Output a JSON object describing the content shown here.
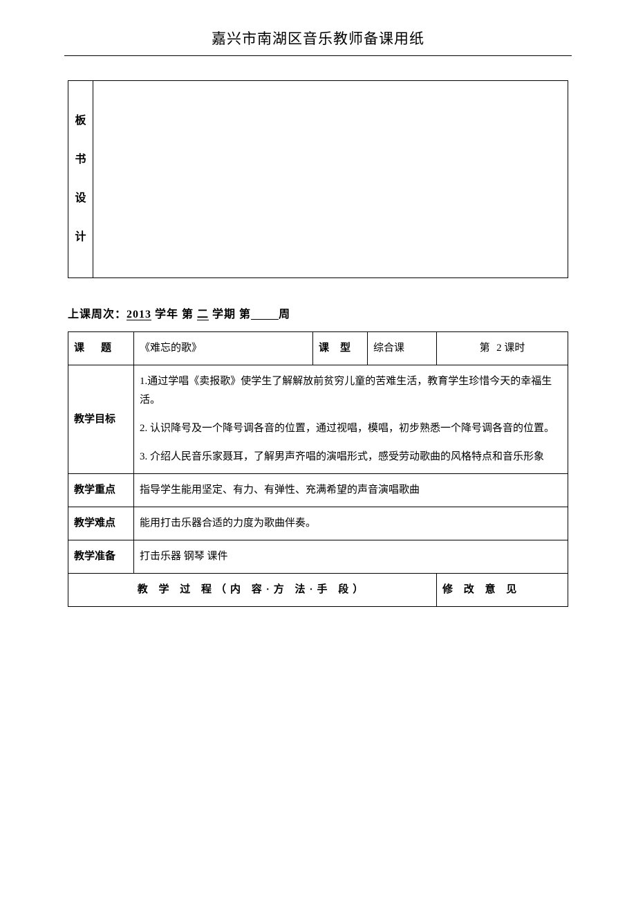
{
  "header": {
    "title": "嘉兴市南湖区音乐教师备课用纸"
  },
  "board_design": {
    "label": "板书设计"
  },
  "week_info": {
    "prefix": "上课周次：",
    "year": "2013",
    "year_suffix": " 学年 第 ",
    "semester": "二",
    "semester_suffix": " 学期 第",
    "week_suffix": "周"
  },
  "lesson": {
    "topic_label": "课题",
    "topic_value": "《难忘的歌》",
    "type_label": "课型",
    "type_value": "综合课",
    "period_prefix": "第",
    "period_num": "2",
    "period_suffix": "课时",
    "goals_label": "教学目标",
    "goal1": "1.通过学唱《卖报歌》使学生了解解放前贫穷儿童的苦难生活，教育学生珍惜今天的幸福生活。",
    "goal2": "2. 认识降号及一个降号调各音的位置，通过视唱，模唱，初步熟悉一个降号调各音的位置。",
    "goal3": "3. 介绍人民音乐家聂耳，了解男声齐唱的演唱形式，感受劳动歌曲的风格特点和音乐形象",
    "focus_label": "教学重点",
    "focus_value": "指导学生能用坚定、有力、有弹性、充满希望的声音演唱歌曲",
    "difficulty_label": "教学难点",
    "difficulty_value": "能用打击乐器合适的力度为歌曲伴奏。",
    "prep_label": "教学准备",
    "prep_value": "打击乐器 钢琴 课件",
    "process_label": "教 学 过 程（内 容·方 法·手 段）",
    "revise_label": "修 改 意 见"
  },
  "colors": {
    "background": "#ffffff",
    "text": "#000000",
    "border": "#000000"
  },
  "fonts": {
    "body_family": "SimSun, 宋体, serif",
    "title_size": 21,
    "body_size": 15,
    "label_size": 16
  }
}
